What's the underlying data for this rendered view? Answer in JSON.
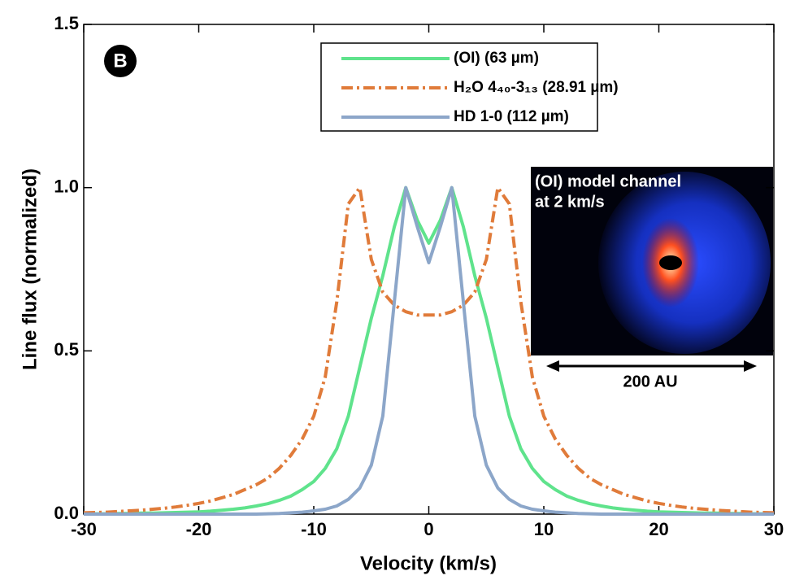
{
  "chart_data": {
    "type": "line",
    "panel_label": "B",
    "xlabel": "Velocity (km/s)",
    "ylabel": "Line flux (normalized)",
    "x": [
      -30,
      -29,
      -28,
      -27,
      -26,
      -25,
      -24,
      -23,
      -22,
      -21,
      -20,
      -19,
      -18,
      -17,
      -16,
      -15,
      -14,
      -13,
      -12,
      -11,
      -10,
      -9,
      -8,
      -7,
      -6,
      -5,
      -4,
      -3,
      -2,
      -1,
      0,
      1,
      2,
      3,
      4,
      5,
      6,
      7,
      8,
      9,
      10,
      11,
      12,
      13,
      14,
      15,
      16,
      17,
      18,
      19,
      20,
      21,
      22,
      23,
      24,
      25,
      26,
      27,
      28,
      29,
      30
    ],
    "series": [
      {
        "name": "(OI) (63 µm)",
        "color": "#5fe38c",
        "dash": "solid",
        "values": [
          0.001,
          0.001,
          0.001,
          0.002,
          0.002,
          0.003,
          0.003,
          0.004,
          0.005,
          0.006,
          0.007,
          0.009,
          0.012,
          0.015,
          0.019,
          0.025,
          0.032,
          0.042,
          0.055,
          0.075,
          0.1,
          0.14,
          0.2,
          0.3,
          0.45,
          0.6,
          0.73,
          0.88,
          1.0,
          0.9,
          0.83,
          0.9,
          1.0,
          0.88,
          0.73,
          0.6,
          0.45,
          0.3,
          0.2,
          0.14,
          0.1,
          0.075,
          0.055,
          0.042,
          0.032,
          0.025,
          0.019,
          0.015,
          0.012,
          0.009,
          0.007,
          0.006,
          0.005,
          0.004,
          0.003,
          0.003,
          0.002,
          0.002,
          0.001,
          0.001,
          0.001
        ]
      },
      {
        "name": "H₂O 4₄₀-3₁₃ (28.91 µm)",
        "color": "#e07b3a",
        "dash": "dashdot",
        "values": [
          0.004,
          0.005,
          0.006,
          0.008,
          0.01,
          0.012,
          0.015,
          0.018,
          0.022,
          0.027,
          0.033,
          0.04,
          0.05,
          0.06,
          0.075,
          0.09,
          0.11,
          0.14,
          0.18,
          0.23,
          0.3,
          0.42,
          0.65,
          0.95,
          1.0,
          0.78,
          0.68,
          0.64,
          0.62,
          0.61,
          0.61,
          0.61,
          0.62,
          0.64,
          0.68,
          0.78,
          1.0,
          0.95,
          0.65,
          0.42,
          0.3,
          0.23,
          0.18,
          0.14,
          0.11,
          0.09,
          0.075,
          0.06,
          0.05,
          0.04,
          0.033,
          0.027,
          0.022,
          0.018,
          0.015,
          0.012,
          0.01,
          0.008,
          0.006,
          0.005,
          0.004
        ]
      },
      {
        "name": "HD 1-0 (112 µm)",
        "color": "#8ca6c9",
        "dash": "solid",
        "values": [
          0,
          0,
          0,
          0,
          0,
          0,
          0,
          0,
          0,
          0,
          0,
          0,
          0,
          0,
          0,
          0,
          0.001,
          0.002,
          0.004,
          0.006,
          0.01,
          0.015,
          0.025,
          0.045,
          0.08,
          0.15,
          0.3,
          0.65,
          1.0,
          0.88,
          0.77,
          0.88,
          1.0,
          0.65,
          0.3,
          0.15,
          0.08,
          0.045,
          0.025,
          0.015,
          0.01,
          0.006,
          0.004,
          0.002,
          0.001,
          0,
          0,
          0,
          0,
          0,
          0,
          0,
          0,
          0,
          0,
          0,
          0,
          0,
          0,
          0,
          0
        ]
      }
    ],
    "xlim": [
      -30,
      30
    ],
    "ylim": [
      0,
      1.5
    ],
    "xticks": [
      -30,
      -20,
      -10,
      0,
      10,
      20,
      30
    ],
    "yticks": [
      {
        "value": 0,
        "label": "0.0"
      },
      {
        "value": 0.5,
        "label": "0.5"
      },
      {
        "value": 1,
        "label": "1.0"
      },
      {
        "value": 1.5,
        "label": "1.5"
      }
    ],
    "grid": false,
    "legend": "upper right",
    "inset": {
      "lines": [
        "(OI) model channel",
        "at 2 km/s"
      ],
      "scale_label": "200 AU"
    }
  }
}
